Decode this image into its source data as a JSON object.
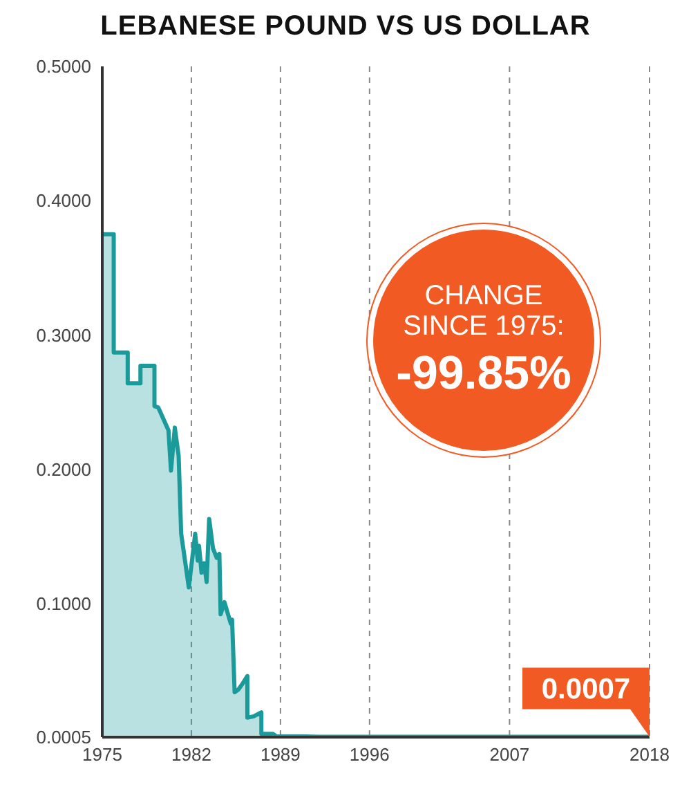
{
  "chart_data": {
    "type": "area",
    "title": "LEBANESE POUND VS US DOLLAR",
    "x": [
      1975,
      1975.9,
      1975.9,
      1977.0,
      1977.0,
      1978.0,
      1978.0,
      1979.1,
      1979.1,
      1979.4,
      1980.2,
      1980.4,
      1980.7,
      1981.0,
      1981.2,
      1981.8,
      1982.3,
      1982.5,
      1982.6,
      1982.8,
      1983.0,
      1983.2,
      1983.4,
      1983.7,
      1984.0,
      1984.2,
      1984.3,
      1984.6,
      1985.1,
      1985.2,
      1985.4,
      1985.7,
      1986.0,
      1986.4,
      1986.4,
      1986.9,
      1987.5,
      1987.5,
      1988.4,
      1988.7,
      1989.5,
      1991,
      1992,
      2018
    ],
    "series": [
      {
        "color": "#1a9a9a",
        "values": [
          0.375,
          0.375,
          0.287,
          0.287,
          0.264,
          0.264,
          0.277,
          0.277,
          0.247,
          0.246,
          0.229,
          0.199,
          0.231,
          0.21,
          0.152,
          0.112,
          0.152,
          0.132,
          0.143,
          0.123,
          0.13,
          0.116,
          0.163,
          0.141,
          0.134,
          0.137,
          0.092,
          0.101,
          0.085,
          0.088,
          0.034,
          0.036,
          0.04,
          0.046,
          0.015,
          0.016,
          0.019,
          0.003,
          0.003,
          0.001,
          0.001,
          0.001,
          0.0007,
          0.0007
        ]
      }
    ],
    "xlim": [
      1975,
      2018
    ],
    "xticks": [
      1975,
      1982,
      1989,
      1996,
      2007,
      2018
    ],
    "ylim": [
      0.0005,
      0.5
    ],
    "yticks": [
      {
        "value": 0.0005,
        "label": "0.0005"
      },
      {
        "value": 0.1,
        "label": "0.1000"
      },
      {
        "value": 0.2,
        "label": "0.2000"
      },
      {
        "value": 0.3,
        "label": "0.3000"
      },
      {
        "value": 0.4,
        "label": "0.4000"
      },
      {
        "value": 0.5,
        "label": "0.5000"
      }
    ],
    "grid": "x",
    "legend": false,
    "annotations": [
      "CHANGE SINCE 1975:",
      "-99.85%",
      {
        "text": "0.0007",
        "x": 2018,
        "y": 0.0007
      }
    ]
  }
}
